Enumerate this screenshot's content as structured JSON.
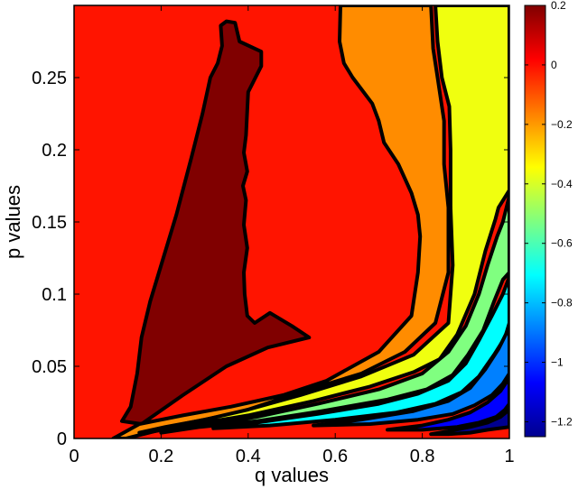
{
  "chart_data": {
    "type": "heatmap",
    "subtype": "filled-contour",
    "title": "",
    "xlabel": "q values",
    "ylabel": "p values",
    "xlim": [
      0,
      1
    ],
    "ylim": [
      0,
      0.3
    ],
    "x_ticks": [
      0,
      0.2,
      0.4,
      0.6,
      0.8,
      1
    ],
    "x_tick_labels": [
      "0",
      "0.2",
      "0.4",
      "0.6",
      "0.8",
      "1"
    ],
    "y_ticks": [
      0,
      0.05,
      0.1,
      0.15,
      0.2,
      0.25
    ],
    "y_tick_labels": [
      "0",
      "0.05",
      "0.1",
      "0.15",
      "0.2",
      "0.25"
    ],
    "grid": false,
    "colormap": "jet",
    "colorbar": {
      "position": "right",
      "range": [
        -1.25,
        0.2
      ],
      "ticks": [
        0.2,
        0,
        -0.2,
        -0.4,
        -0.6,
        -0.8,
        -1,
        -1.2
      ],
      "tick_labels": [
        "0.2",
        "0",
        "−0.2",
        "−0.4",
        "−0.6",
        "−0.8",
        "−1",
        "−1.2"
      ]
    },
    "contour_bands": [
      {
        "level_range": [
          0,
          0.2
        ],
        "color": "#800000",
        "boundary": [
          [
            0.35,
            0.289
          ],
          [
            0.337,
            0.286
          ],
          [
            0.34,
            0.272
          ],
          [
            0.33,
            0.26
          ],
          [
            0.313,
            0.25
          ],
          [
            0.295,
            0.225
          ],
          [
            0.27,
            0.195
          ],
          [
            0.235,
            0.155
          ],
          [
            0.2,
            0.12
          ],
          [
            0.175,
            0.095
          ],
          [
            0.155,
            0.07
          ],
          [
            0.145,
            0.045
          ],
          [
            0.13,
            0.022
          ],
          [
            0.11,
            0.012
          ],
          [
            0.155,
            0.01
          ],
          [
            0.25,
            0.03
          ],
          [
            0.35,
            0.05
          ],
          [
            0.445,
            0.063
          ],
          [
            0.54,
            0.07
          ],
          [
            0.5,
            0.078
          ],
          [
            0.45,
            0.087
          ],
          [
            0.415,
            0.08
          ],
          [
            0.398,
            0.085
          ],
          [
            0.392,
            0.1
          ],
          [
            0.39,
            0.115
          ],
          [
            0.398,
            0.132
          ],
          [
            0.39,
            0.148
          ],
          [
            0.395,
            0.165
          ],
          [
            0.388,
            0.175
          ],
          [
            0.398,
            0.185
          ],
          [
            0.39,
            0.198
          ],
          [
            0.395,
            0.21
          ],
          [
            0.4,
            0.24
          ],
          [
            0.43,
            0.258
          ],
          [
            0.43,
            0.268
          ],
          [
            0.38,
            0.275
          ],
          [
            0.37,
            0.288
          ]
        ]
      },
      {
        "level_range": [
          -0.2,
          0
        ],
        "color": "#ff8c00",
        "boundary": [
          [
            0.612,
            0.3
          ],
          [
            0.61,
            0.275
          ],
          [
            0.62,
            0.26
          ],
          [
            0.64,
            0.25
          ],
          [
            0.685,
            0.232
          ],
          [
            0.7,
            0.22
          ],
          [
            0.712,
            0.205
          ],
          [
            0.745,
            0.19
          ],
          [
            0.775,
            0.17
          ],
          [
            0.79,
            0.155
          ],
          [
            0.795,
            0.14
          ],
          [
            0.79,
            0.115
          ],
          [
            0.775,
            0.085
          ],
          [
            0.7,
            0.06
          ],
          [
            0.58,
            0.04
          ],
          [
            0.48,
            0.03
          ],
          [
            0.36,
            0.022
          ],
          [
            0.25,
            0.016
          ],
          [
            0.15,
            0.01
          ],
          [
            0.09,
            0.0
          ],
          [
            0.12,
            0.0
          ],
          [
            0.25,
            0.01
          ],
          [
            0.38,
            0.018
          ],
          [
            0.52,
            0.032
          ],
          [
            0.66,
            0.045
          ],
          [
            0.76,
            0.06
          ],
          [
            0.83,
            0.08
          ],
          [
            0.86,
            0.115
          ],
          [
            0.86,
            0.16
          ],
          [
            0.85,
            0.19
          ],
          [
            0.85,
            0.22
          ],
          [
            0.835,
            0.25
          ],
          [
            0.825,
            0.27
          ],
          [
            0.82,
            0.3
          ]
        ]
      },
      {
        "level_range": [
          -0.4,
          -0.2
        ],
        "color": "#f0ff0f",
        "boundary": [
          [
            0.83,
            0.3
          ],
          [
            0.835,
            0.275
          ],
          [
            0.845,
            0.25
          ],
          [
            0.862,
            0.23
          ],
          [
            0.865,
            0.2
          ],
          [
            0.865,
            0.16
          ],
          [
            0.87,
            0.12
          ],
          [
            0.86,
            0.08
          ],
          [
            0.78,
            0.058
          ],
          [
            0.66,
            0.043
          ],
          [
            0.52,
            0.03
          ],
          [
            0.4,
            0.02
          ],
          [
            0.3,
            0.013
          ],
          [
            0.21,
            0.008
          ],
          [
            0.15,
            0.004
          ],
          [
            0.165,
            0.004
          ],
          [
            0.28,
            0.01
          ],
          [
            0.4,
            0.016
          ],
          [
            0.55,
            0.026
          ],
          [
            0.68,
            0.036
          ],
          [
            0.78,
            0.046
          ],
          [
            0.84,
            0.055
          ],
          [
            0.88,
            0.072
          ],
          [
            0.92,
            0.1
          ],
          [
            0.945,
            0.13
          ],
          [
            0.968,
            0.152
          ],
          [
            0.975,
            0.16
          ],
          [
            1.0,
            0.172
          ],
          [
            1.0,
            0.3
          ]
        ]
      },
      {
        "level_range": [
          -0.6,
          -0.4
        ],
        "color": "#80ff80",
        "boundary": [
          [
            1.0,
            0.168
          ],
          [
            0.985,
            0.15
          ],
          [
            0.972,
            0.14
          ],
          [
            0.95,
            0.12
          ],
          [
            0.93,
            0.1
          ],
          [
            0.9,
            0.078
          ],
          [
            0.86,
            0.06
          ],
          [
            0.8,
            0.045
          ],
          [
            0.7,
            0.034
          ],
          [
            0.56,
            0.024
          ],
          [
            0.42,
            0.015
          ],
          [
            0.3,
            0.009
          ],
          [
            0.2,
            0.004
          ],
          [
            0.29,
            0.008
          ],
          [
            0.42,
            0.012
          ],
          [
            0.57,
            0.019
          ],
          [
            0.72,
            0.027
          ],
          [
            0.81,
            0.034
          ],
          [
            0.87,
            0.044
          ],
          [
            0.905,
            0.058
          ],
          [
            0.94,
            0.075
          ],
          [
            0.965,
            0.095
          ],
          [
            0.985,
            0.11
          ],
          [
            1.0,
            0.115
          ]
        ]
      },
      {
        "level_range": [
          -0.8,
          -0.6
        ],
        "color": "#00ffff",
        "boundary": [
          [
            1.0,
            0.112
          ],
          [
            0.985,
            0.1
          ],
          [
            0.96,
            0.085
          ],
          [
            0.93,
            0.068
          ],
          [
            0.9,
            0.052
          ],
          [
            0.86,
            0.04
          ],
          [
            0.79,
            0.031
          ],
          [
            0.7,
            0.024
          ],
          [
            0.56,
            0.017
          ],
          [
            0.42,
            0.011
          ],
          [
            0.32,
            0.007
          ],
          [
            0.45,
            0.009
          ],
          [
            0.6,
            0.013
          ],
          [
            0.74,
            0.018
          ],
          [
            0.83,
            0.024
          ],
          [
            0.89,
            0.032
          ],
          [
            0.93,
            0.043
          ],
          [
            0.965,
            0.058
          ],
          [
            0.99,
            0.07
          ],
          [
            1.0,
            0.08
          ]
        ]
      },
      {
        "level_range": [
          -1.0,
          -0.8
        ],
        "color": "#0080ff",
        "boundary": [
          [
            1.0,
            0.077
          ],
          [
            0.975,
            0.062
          ],
          [
            0.945,
            0.048
          ],
          [
            0.91,
            0.035
          ],
          [
            0.86,
            0.026
          ],
          [
            0.78,
            0.019
          ],
          [
            0.66,
            0.013
          ],
          [
            0.55,
            0.009
          ],
          [
            0.68,
            0.01
          ],
          [
            0.79,
            0.013
          ],
          [
            0.87,
            0.017
          ],
          [
            0.92,
            0.023
          ],
          [
            0.96,
            0.03
          ],
          [
            0.985,
            0.038
          ],
          [
            1.0,
            0.045
          ]
        ]
      },
      {
        "level_range": [
          -1.2,
          -1.0
        ],
        "color": "#0000ff",
        "boundary": [
          [
            1.0,
            0.042
          ],
          [
            0.98,
            0.033
          ],
          [
            0.95,
            0.025
          ],
          [
            0.91,
            0.018
          ],
          [
            0.86,
            0.013
          ],
          [
            0.8,
            0.009
          ],
          [
            0.72,
            0.006
          ],
          [
            0.8,
            0.006
          ],
          [
            0.88,
            0.008
          ],
          [
            0.93,
            0.011
          ],
          [
            0.97,
            0.015
          ],
          [
            0.99,
            0.02
          ],
          [
            1.0,
            0.024
          ]
        ]
      },
      {
        "level_range": [
          -1.25,
          -1.2
        ],
        "color": "#000090",
        "boundary": [
          [
            1.0,
            0.02
          ],
          [
            0.98,
            0.015
          ],
          [
            0.95,
            0.011
          ],
          [
            0.91,
            0.008
          ],
          [
            0.86,
            0.005
          ],
          [
            0.82,
            0.003
          ],
          [
            0.86,
            0.003
          ],
          [
            0.91,
            0.004
          ],
          [
            0.95,
            0.006
          ],
          [
            1.0,
            0.008
          ]
        ]
      }
    ],
    "background_band": {
      "level_range": [
        0,
        0.2
      ],
      "color": "#ff1400"
    }
  }
}
